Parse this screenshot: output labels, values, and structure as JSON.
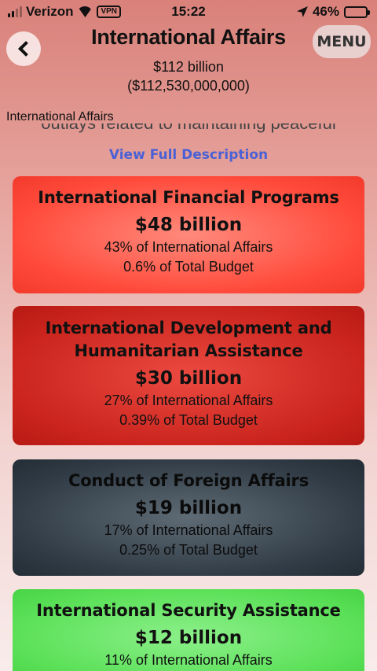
{
  "status_bar": {
    "carrier": "Verizon",
    "vpn": "VPN",
    "time": "15:22",
    "battery": "46%",
    "battery_level": 0.46
  },
  "header": {
    "title": "International Affairs",
    "menu_label": "MENU",
    "total_short": "$112 billion",
    "total_long": "($112,530,000,000)",
    "section_label": "International Affairs"
  },
  "description": {
    "snippet": "outlays related to maintaining peaceful",
    "view_full_label": "View Full Description"
  },
  "cards": [
    {
      "title": "International Financial Programs",
      "amount": "$48 billion",
      "pct_category": "43% of International Affairs",
      "pct_total": "0.6% of Total Budget",
      "color": "#ff4a3b"
    },
    {
      "title_line1": "International Development and",
      "title_line2": "Humanitarian Assistance",
      "amount": "$30 billion",
      "pct_category": "27% of International Affairs",
      "pct_total": "0.39% of Total Budget",
      "color": "#c9231c"
    },
    {
      "title": "Conduct of Foreign Affairs",
      "amount": "$19 billion",
      "pct_category": "17% of International Affairs",
      "pct_total": "0.25% of Total Budget",
      "color": "#313c46"
    },
    {
      "title": "International Security Assistance",
      "amount": "$12 billion",
      "pct_category": "11% of International Affairs",
      "color": "#5be058"
    }
  ],
  "icons": {
    "back": "chevron-left-icon",
    "signal": "signal-icon",
    "wifi": "wifi-icon",
    "location": "location-arrow-icon",
    "battery": "battery-icon"
  }
}
